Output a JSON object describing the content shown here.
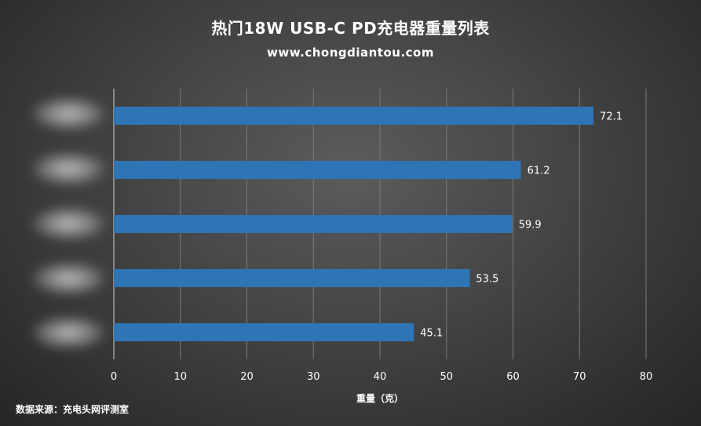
{
  "title": "热门18W  USB-C  PD充电器重量列表",
  "subtitle": "www.chongdiantou.com",
  "source": "数据来源：充电头网评测室",
  "colors": {
    "bar": "#2e75b6",
    "grid": "#7a7a7a",
    "text": "#ffffff"
  },
  "chart_data": {
    "type": "bar",
    "orientation": "horizontal",
    "categories": [
      "",
      "",
      "",
      "",
      ""
    ],
    "values": [
      72.1,
      61.2,
      59.9,
      53.5,
      45.1
    ],
    "value_labels": [
      "72.1",
      "61.2",
      "59.9",
      "53.5",
      "45.1"
    ],
    "xlabel": "重量（克）",
    "ylabel": "",
    "xlim": [
      0,
      80
    ],
    "xticks": [
      "0",
      "10",
      "20",
      "30",
      "40",
      "50",
      "60",
      "70",
      "80"
    ],
    "grid": true,
    "legend": "none"
  }
}
